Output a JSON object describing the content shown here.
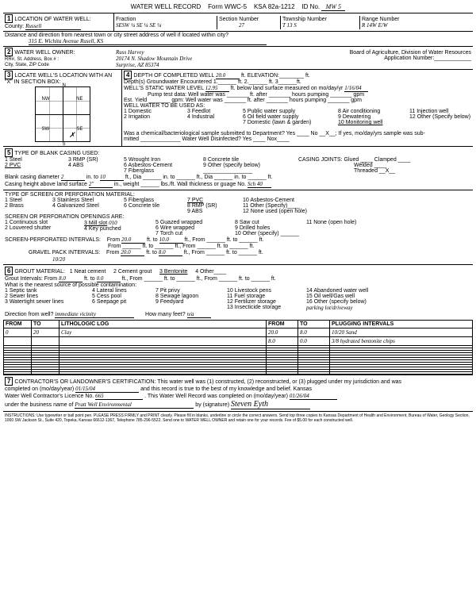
{
  "form": {
    "title": "WATER WELL RECORD",
    "formNo": "Form WWC-5",
    "ksa": "KSA 82a-1212",
    "idPrefix": "ID No.",
    "idNo": "MW 5"
  },
  "loc": {
    "label1": "LOCATION OF WATER WELL:",
    "countyLbl": "County:",
    "county": "Russell",
    "fractionLbl": "Fraction",
    "fraction": "SESW ¼  SE  ¼  SE  ¼",
    "sectionLbl": "Section Number",
    "section": "27",
    "townshipLbl": "Township Number",
    "township": "T  13  S",
    "rangeLbl": "Range Number",
    "range": "R  14W  E/W",
    "distLbl": "Distance and direction from nearest town or city street address of well if located within city?",
    "address": "315 E. Wichita Avenue     Rusell, KS"
  },
  "owner": {
    "label": "WATER WELL OWNER:",
    "sub": "RR#, St. Address, Box #  :\nCity, State, ZIP Code",
    "name": "Russ Harvey",
    "addr1": "20174 N. Shadow Mountain Drive",
    "addr2": "Surprise, AZ  85374",
    "board": "Board of Agriculture, Division of Water Resources",
    "appLbl": "Application Number:"
  },
  "locate": {
    "label": "LOCATE WELL'S LOCATION WITH AN \"X\" IN SECTION BOX:",
    "nw": "NW",
    "ne": "NE",
    "sw": "SW",
    "se": "SE",
    "n": "N",
    "s": "S",
    "w": "W",
    "e": "E"
  },
  "depth": {
    "label": "DEPTH OF COMPLETED WELL",
    "val": "20.0",
    "elevLbl": "ft. ELEVATION:",
    "gwLbl": "Depth(s) Groundwater Encountered",
    "gw1": "1.",
    "gw2": "ft. 2.",
    "gw3": "ft. 3",
    "swLbl": "WELL'S STATIC WATER LEVEL",
    "sw": "12.95",
    "swAfter": "ft. below land surface measured on mo/day/yr",
    "swDate": "1/16/04",
    "pumpLbl": "Pump test data:  Well water was _______ ft. after _______ hours pumping _______ gpm",
    "estLbl": "Est. Yield _______ gpm:  Well water was _______ ft. after _______ hours pumping _______ gpm",
    "useLbl": "WELL WATER TO BE USED AS:",
    "u1": "1 Domestic",
    "u2": "2 Irrigation",
    "u3": "3 Feedlot",
    "u4": "4 Industrial",
    "u5": "5 Public water supply",
    "u6": "6 Oil field water supply",
    "u7": "7 Domestic (lawn & garden)",
    "u8": "8 Air conditioning",
    "u9": "9 Dewatering",
    "u10": "10 Monitoring well",
    "u11": "11 Injection well",
    "u12": "12 Other (Specify below)",
    "chemLbl": "Was a chemical/bacteriological sample submitted to Department? Yes ____ No __X__; If yes, mo/day/yrs sample was sub-",
    "chemLbl2": "mitted _____________ Water Well Disinfected? Yes ____ Nox____"
  },
  "casing": {
    "label": "TYPE OF BLANK CASING USED:",
    "c1": "1 Steel",
    "c2": "2 PVC",
    "c3": "3 RMP (SR)",
    "c4": "4 ABS",
    "c5": "5 Wrought Iron",
    "c6": "6 Asbestos-Cement",
    "c7": "7 Fiberglass",
    "c8": "8 Concrete tile",
    "c9": "9 Other (specify below)",
    "jointsLbl": "CASING JOINTS: Glued ____ Clamped ____",
    "joints2": "Welded ____",
    "joints3": "Threaded __X__",
    "diaLbl": "Blank casing diameter",
    "dia": "2",
    "diaIn": "in. to",
    "dia2": "10",
    "diaFt": "ft., Dia ______ in. to ______ ft., Dia ______ in. to ______ ft.",
    "heightLbl": "Casing height above land surface",
    "height": "2\"",
    "heightAfter": "in., weight ______ lbs./ft. Wall thickness or guage No.",
    "sch": "Sch 40"
  },
  "screen": {
    "label": "TYPE OF SCREEN OR PERFORATION MATERIAL:",
    "s1": "1 Steel",
    "s2": "2 Brass",
    "s3": "3 Stainless Steel",
    "s4": "4 Galvanized Steel",
    "s5": "5 Fiberglass",
    "s6": "6 Concrete tile",
    "s7": "7 PVC",
    "s8": "8 RMP (SR)",
    "s9": "9 ABS",
    "s10": "10 Asbestos-Cement",
    "s11": "11 Other (Specify)____",
    "s12": "12 None used (open hole)",
    "openLbl": "SCREEN OR PERFORATION OPENINGS ARE:",
    "o1": "1 Continuous slot",
    "o2": "2 Louvered shutter",
    "o3": "3 Mill slot",
    "o3v": "010",
    "o4": "4 Key punched",
    "o5": "5 Guazed wrapped",
    "o6": "6 Wire wrapped",
    "o7": "7 Torch cut",
    "o8": "8 Saw cut",
    "o9": "9 Drilled holes",
    "o10": "10 Other (specify) ______",
    "o11": "11 None (open hole)",
    "intLbl": "SCREEN-PERFORATED INTERVALS:",
    "intFrom": "From",
    "intTo": "ft. to",
    "i1f": "20.0",
    "i1t": "10.0",
    "gpLbl": "GRAVEL PACK INTERVALS:",
    "g1f": "20.0",
    "g1t": "8.0",
    "tenTwenty": "10/20"
  },
  "grout": {
    "label": "GROUT MATERIAL:",
    "g1": "1 Neat cement",
    "g2": "2 Cement grout",
    "g3": "3 Bentonite",
    "g4": "4 Other____",
    "intLbl": "Grout Intervals:  From",
    "gf": "8.0",
    "gt": "0.0",
    "gAfter": "ft., From ______ ft. to ______ ft., From ______ ft. to ______ ft.",
    "srcLbl": "What is the nearest source of possible contamination:",
    "p1": "1 Septic tank",
    "p2": "2 Sewer lines",
    "p3": "3 Watertight sewer lines",
    "p4": "4 Lateral lines",
    "p5": "5 Cess pool",
    "p6": "6 Seepage pit",
    "p7": "7 Pit privy",
    "p8": "8 Sewage lagoon",
    "p9": "9 Feedyard",
    "p10": "10 Livestock pens",
    "p11": "11 Fuel storage",
    "p12": "12 Fertilizer storage",
    "p13": "13 Insecticide storage",
    "p14": "14 Abandoned water well",
    "p15": "15 Oil well/Gas well",
    "p16": "16 Other (specify below)",
    "p16v": "parking lot/driveway",
    "dirLbl": "Direction from well?",
    "dir": "immediate vicinity",
    "feetLbl": "How many feet?",
    "feet": "n/a"
  },
  "lith": {
    "fromH": "FROM",
    "toH": "TO",
    "logH": "LITHOLOGIC LOG",
    "plugFromH": "FROM",
    "plugToH": "TO",
    "plugH": "PLUGGING INTERVALS",
    "rows": [
      {
        "from": "0",
        "to": "20",
        "log": "Clay",
        "pf": "20.0",
        "pt": "8.0",
        "plug": "10/20 Sand"
      },
      {
        "from": "",
        "to": "",
        "log": "",
        "pf": "8.0",
        "pt": "0.0",
        "plug": "3/8 hydrated bentonite chips"
      }
    ]
  },
  "cert": {
    "label": "CONTRACTOR'S OR LANDOWNER'S CERTIFICATION: This water well was (1) constructed, (2) reconstructed, or (3) plugged under my jurisdiction and was",
    "l2a": "completed on (mo/day/year)",
    "date1": "01/15/04",
    "l2b": "and this record is true to the best of my knowledge and belief. Kansas",
    "l3a": "Water Well Contractor's Licence No.",
    "lic": "665",
    "l3b": ". This Water Well Record was completed on (mo/day/year)",
    "date2": "01/26/04",
    "l4a": "under the business name of",
    "biz": "Pratt Well Environmental",
    "l4b": "by (signature)",
    "sig": "Steven Eyth"
  },
  "instr": "INSTRUCTIONS: Use typewriter or ball point pen. PLEASE PRESS FIRMLY and PRINT clearly. Please fill in blanks, underline or circle the correct answers. Send top three copies to Kansas Department of Health and Environment, Bureau of Water, Geology Section, 1000 SW Jackson St., Suite 420, Topeka, Kansas 66612-1367, Telephone 785-296-5522. Send one to WATER WELL OWNER and retain one for your records. Fee of $5.00 for each constructed well."
}
